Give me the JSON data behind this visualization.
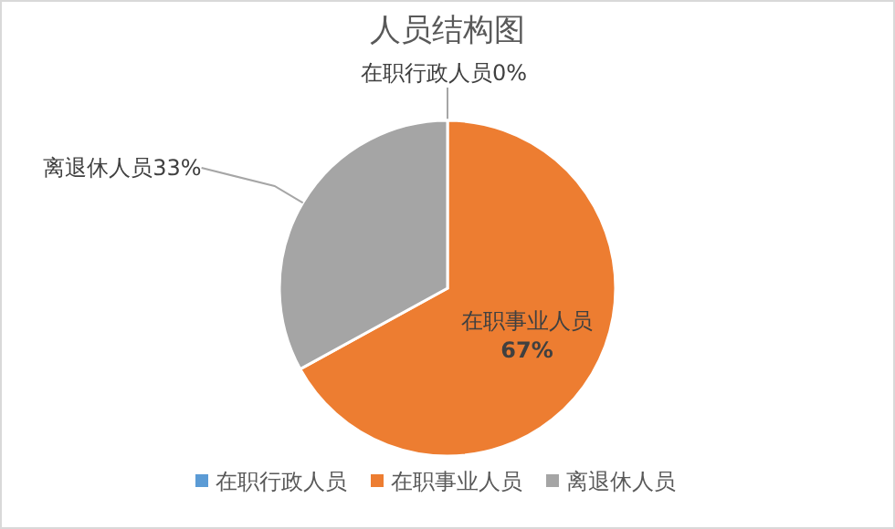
{
  "chart_data": {
    "type": "pie",
    "title": "人员结构图",
    "categories": [
      "在职行政人员",
      "在职事业人员",
      "离退休人员"
    ],
    "values": [
      0,
      67,
      33
    ],
    "value_labels": [
      "0%",
      "67%",
      "33%"
    ],
    "colors": [
      "#5b9bd5",
      "#ed7d31",
      "#a5a5a5"
    ],
    "legend": "bottom"
  }
}
